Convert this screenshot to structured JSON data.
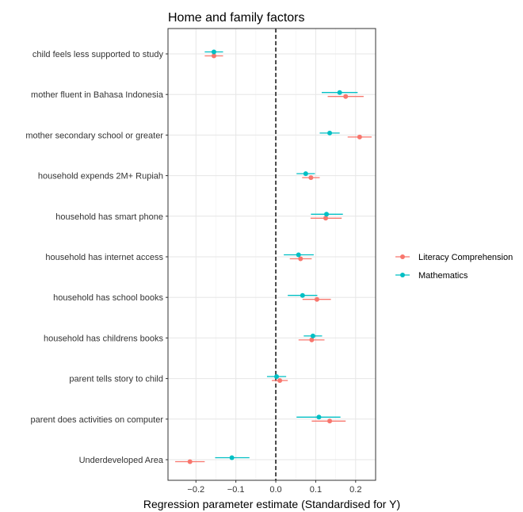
{
  "chart_data": {
    "type": "scatter",
    "title": "Home and family factors",
    "xlabel": "Regression parameter estimate (Standardised for Y)",
    "ylabel": "",
    "xlim": [
      -0.27,
      0.25
    ],
    "xticks": [
      -0.2,
      -0.1,
      0.0,
      0.1,
      0.2
    ],
    "xtick_labels": [
      "−0.2",
      "−0.1",
      "0.0",
      "0.1",
      "0.2"
    ],
    "reference_line": 0,
    "grid": true,
    "legend_position": "right",
    "categories": [
      "child feels less supported to study",
      "mother fluent in Bahasa Indonesia",
      "mother secondary school or greater",
      "household expends 2M+ Rupiah",
      "household has smart phone",
      "household has internet access",
      "household has school books",
      "household has childrens books",
      "parent tells story to child",
      "parent does activities on computer",
      "Underdeveloped Area"
    ],
    "series": [
      {
        "name": "Literacy Comprehension",
        "color": "#F8766D",
        "values": [
          -0.155,
          0.175,
          0.21,
          0.088,
          0.125,
          0.062,
          0.103,
          0.09,
          0.01,
          0.135,
          -0.215
        ],
        "lower": [
          -0.178,
          0.13,
          0.18,
          0.066,
          0.087,
          0.035,
          0.067,
          0.057,
          -0.01,
          0.09,
          -0.252
        ],
        "upper": [
          -0.132,
          0.22,
          0.24,
          0.11,
          0.165,
          0.09,
          0.138,
          0.122,
          0.03,
          0.175,
          -0.178
        ]
      },
      {
        "name": "Mathematics",
        "color": "#00BFC4",
        "values": [
          -0.155,
          0.16,
          0.135,
          0.075,
          0.127,
          0.057,
          0.067,
          0.093,
          0.002,
          0.108,
          -0.11
        ],
        "lower": [
          -0.178,
          0.115,
          0.11,
          0.052,
          0.088,
          0.02,
          0.03,
          0.07,
          -0.022,
          0.052,
          -0.152
        ],
        "upper": [
          -0.132,
          0.205,
          0.16,
          0.098,
          0.168,
          0.095,
          0.104,
          0.116,
          0.026,
          0.162,
          -0.066
        ]
      }
    ]
  }
}
